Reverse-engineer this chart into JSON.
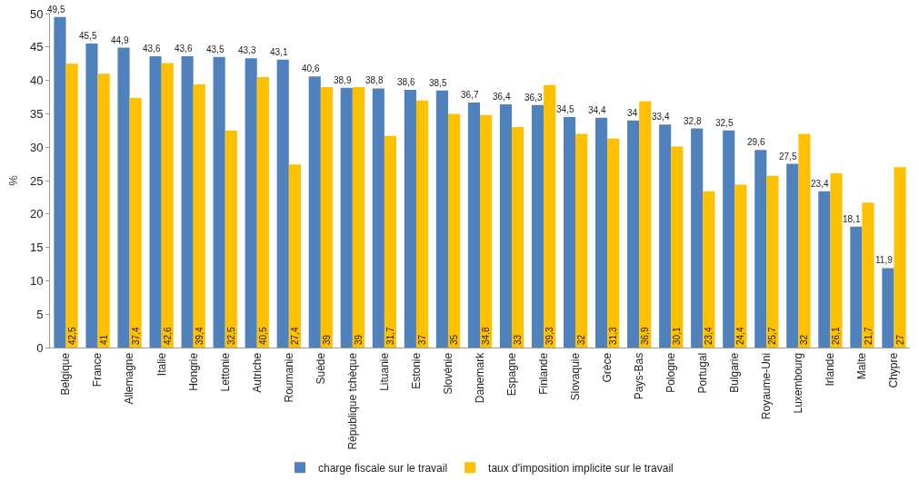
{
  "chart_data": {
    "type": "bar",
    "ylabel": "%",
    "categories": [
      "Belgique",
      "France",
      "Allemagne",
      "Italie",
      "Hongrie",
      "Lettonie",
      "Autriche",
      "Roumanie",
      "Suède",
      "République tchèque",
      "Lituanie",
      "Estonie",
      "Slovénie",
      "Danemark",
      "Espagne",
      "Finlande",
      "Slovaquie",
      "Grèce",
      "Pays-Bas",
      "Pologne",
      "Portugal",
      "Bulgarie",
      "Royaume-Uni",
      "Luxembourg",
      "Irlande",
      "Malte",
      "Chypre"
    ],
    "series": [
      {
        "name": "charge fiscale sur le travail",
        "color": "#4f81bd",
        "values": [
          49.5,
          45.5,
          44.9,
          43.6,
          43.6,
          43.5,
          43.3,
          43.1,
          40.6,
          38.9,
          38.8,
          38.6,
          38.5,
          36.7,
          36.4,
          36.3,
          34.5,
          34.4,
          34,
          33.4,
          32.8,
          32.5,
          29.6,
          27.5,
          23.4,
          18.1,
          11.9
        ],
        "value_labels": [
          "49,5",
          "45,5",
          "44,9",
          "43,6",
          "43,6",
          "43,5",
          "43,3",
          "43,1",
          "40,6",
          "38,9",
          "38,8",
          "38,6",
          "38,5",
          "36,7",
          "36,4",
          "36,3",
          "34,5",
          "34,4",
          "34",
          "33,4",
          "32,8",
          "32,5",
          "29,6",
          "27,5",
          "23,4",
          "18,1",
          "11,9"
        ]
      },
      {
        "name": "taux d'imposition implicite sur le travail",
        "color": "#ffc000",
        "values": [
          42.5,
          41,
          37.4,
          42.6,
          39.4,
          32.5,
          40.5,
          27.4,
          39,
          39,
          31.7,
          37,
          35,
          34.8,
          33,
          39.3,
          32,
          31.3,
          36.9,
          30.1,
          23.4,
          24.4,
          25.7,
          32,
          26.1,
          21.7,
          27
        ],
        "value_labels": [
          "42,5",
          "41",
          "37,4",
          "42,6",
          "39,4",
          "32,5",
          "40,5",
          "27,4",
          "39",
          "39",
          "31,7",
          "37",
          "35",
          "34,8",
          "33",
          "39,3",
          "32",
          "31,3",
          "36,9",
          "30,1",
          "23,4",
          "24,4",
          "25,7",
          "32",
          "26,1",
          "21,7",
          "27"
        ]
      }
    ],
    "ylim": [
      0,
      50
    ],
    "yticks": [
      0,
      5,
      10,
      15,
      20,
      25,
      30,
      35,
      40,
      45,
      50
    ],
    "grid": false,
    "legend": "bottom"
  }
}
